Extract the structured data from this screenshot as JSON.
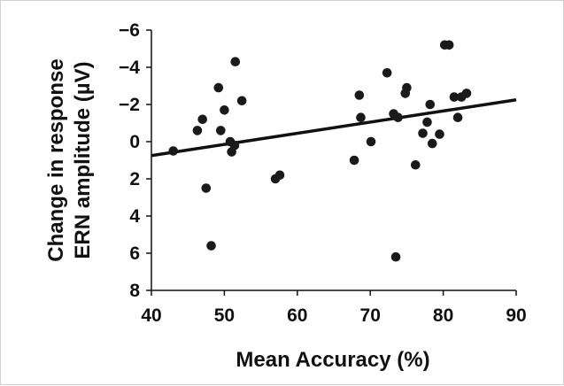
{
  "chart_data": {
    "type": "scatter",
    "title": "",
    "xlabel": "Mean Accuracy (%)",
    "ylabel_lines": [
      "Change in response",
      "ERN amplitude (µV)"
    ],
    "xlim": [
      40,
      90
    ],
    "ylim": [
      -6,
      8
    ],
    "y_inverted": true,
    "xticks": [
      40,
      50,
      60,
      70,
      80,
      90
    ],
    "yticks": [
      -6,
      -4,
      -2,
      0,
      2,
      4,
      6,
      8
    ],
    "ytick_labels": [
      "−6",
      "−4",
      "−2",
      "0",
      "2",
      "4",
      "6",
      "8"
    ],
    "grid": false,
    "legend": "none",
    "point_color": "#1a1a1a",
    "series": [
      {
        "points": [
          {
            "x": 43.0,
            "y": 0.5
          },
          {
            "x": 46.3,
            "y": -0.6
          },
          {
            "x": 47.0,
            "y": -1.2
          },
          {
            "x": 47.5,
            "y": 2.5
          },
          {
            "x": 48.2,
            "y": 5.6
          },
          {
            "x": 49.2,
            "y": -2.9
          },
          {
            "x": 49.5,
            "y": -0.6
          },
          {
            "x": 50.0,
            "y": -1.7
          },
          {
            "x": 50.8,
            "y": 0.0
          },
          {
            "x": 51.0,
            "y": 0.55
          },
          {
            "x": 51.4,
            "y": 0.2
          },
          {
            "x": 51.5,
            "y": -4.3
          },
          {
            "x": 52.4,
            "y": -2.2
          },
          {
            "x": 57.0,
            "y": 2.0
          },
          {
            "x": 57.6,
            "y": 1.8
          },
          {
            "x": 67.8,
            "y": 1.0
          },
          {
            "x": 68.5,
            "y": -2.5
          },
          {
            "x": 68.7,
            "y": -1.3
          },
          {
            "x": 70.1,
            "y": 0.0
          },
          {
            "x": 72.3,
            "y": -3.7
          },
          {
            "x": 73.2,
            "y": -1.5
          },
          {
            "x": 73.5,
            "y": 6.2
          },
          {
            "x": 73.8,
            "y": -1.3
          },
          {
            "x": 74.8,
            "y": -2.6
          },
          {
            "x": 75.0,
            "y": -2.9
          },
          {
            "x": 76.2,
            "y": 1.25
          },
          {
            "x": 77.2,
            "y": -0.45
          },
          {
            "x": 77.8,
            "y": -1.05
          },
          {
            "x": 78.2,
            "y": -2.0
          },
          {
            "x": 78.5,
            "y": 0.1
          },
          {
            "x": 79.5,
            "y": -0.4
          },
          {
            "x": 80.2,
            "y": -5.2
          },
          {
            "x": 80.8,
            "y": -5.2
          },
          {
            "x": 81.5,
            "y": -2.4
          },
          {
            "x": 82.0,
            "y": -1.3
          },
          {
            "x": 82.5,
            "y": -2.4
          },
          {
            "x": 83.2,
            "y": -2.6
          }
        ]
      }
    ],
    "trendline": {
      "x": [
        40,
        90
      ],
      "y": [
        0.75,
        -2.25
      ]
    }
  }
}
